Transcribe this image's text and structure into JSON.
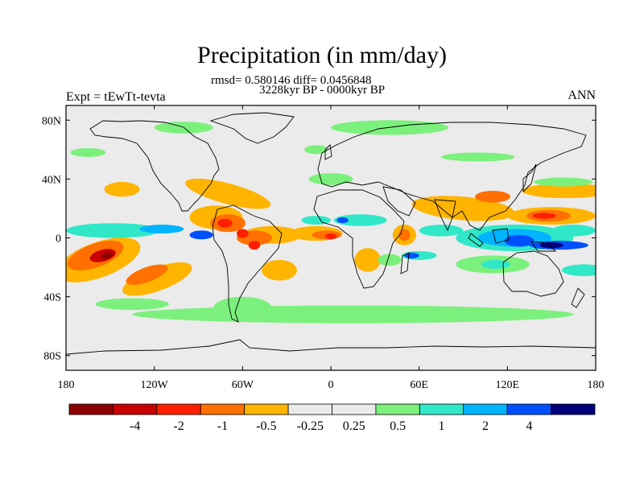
{
  "title": "Precipitation (in mm/day)",
  "stats_line": "rmsd= 0.580146 diff= 0.0456848",
  "period_line": "3228kyr BP - 0000kyr BP",
  "experiment_label": "Expt = tEwTt-tevta",
  "season_label": "ANN",
  "map": {
    "projection": "cylindrical-equidistant",
    "lon_range": [
      -180,
      180
    ],
    "lat_range": [
      -90,
      90
    ],
    "x_ticks": [
      {
        "lon": -180,
        "label": "180"
      },
      {
        "lon": -120,
        "label": "120W"
      },
      {
        "lon": -60,
        "label": "60W"
      },
      {
        "lon": 0,
        "label": "0"
      },
      {
        "lon": 60,
        "label": "60E"
      },
      {
        "lon": 120,
        "label": "120E"
      },
      {
        "lon": 180,
        "label": "180"
      }
    ],
    "y_ticks": [
      {
        "lat": 80,
        "label": "80N"
      },
      {
        "lat": 40,
        "label": "40N"
      },
      {
        "lat": 0,
        "label": "0"
      },
      {
        "lat": -40,
        "label": "40S"
      },
      {
        "lat": -80,
        "label": "80S"
      }
    ]
  },
  "colorbar": {
    "colors": [
      "#8b0000",
      "#c80000",
      "#ff2000",
      "#ff7000",
      "#ffb400",
      "#ebebeb",
      "#ebebeb",
      "#7cf07c",
      "#30e8c8",
      "#00b4ff",
      "#0050ff",
      "#00007a"
    ],
    "labels": [
      "-4",
      "-2",
      "-1",
      "-0.5",
      "-0.25",
      "0.25",
      "0.5",
      "1",
      "2",
      "4"
    ]
  },
  "anomaly_regions": [
    {
      "color": "#ffb400",
      "lon": -158,
      "lat": -15,
      "rlon": 30,
      "rlat": 12,
      "rot": -20
    },
    {
      "color": "#ff7000",
      "lon": -160,
      "lat": -12,
      "rlon": 20,
      "rlat": 8,
      "rot": -20
    },
    {
      "color": "#c80000",
      "lon": -155,
      "lat": -12,
      "rlon": 9,
      "rlat": 4,
      "rot": -15
    },
    {
      "color": "#8b0000",
      "lon": -152,
      "lat": -12,
      "rlon": 4,
      "rlat": 2,
      "rot": -15
    },
    {
      "color": "#ffb400",
      "lon": -118,
      "lat": -28,
      "rlon": 25,
      "rlat": 8,
      "rot": -20
    },
    {
      "color": "#ff7000",
      "lon": -125,
      "lat": -25,
      "rlon": 15,
      "rlat": 5,
      "rot": -20
    },
    {
      "color": "#30e8c8",
      "lon": -148,
      "lat": 5,
      "rlon": 32,
      "rlat": 5,
      "rot": 0
    },
    {
      "color": "#00b4ff",
      "lon": -115,
      "lat": 6,
      "rlon": 15,
      "rlat": 3,
      "rot": 0
    },
    {
      "color": "#0050ff",
      "lon": -88,
      "lat": 2,
      "rlon": 8,
      "rlat": 3,
      "rot": 0
    },
    {
      "color": "#ffb400",
      "lon": -70,
      "lat": 30,
      "rlon": 30,
      "rlat": 7,
      "rot": 15
    },
    {
      "color": "#ffb400",
      "lon": -142,
      "lat": 33,
      "rlon": 12,
      "rlat": 5,
      "rot": 0
    },
    {
      "color": "#ffb400",
      "lon": -78,
      "lat": 14,
      "rlon": 18,
      "rlat": 8,
      "rot": 0
    },
    {
      "color": "#ff7000",
      "lon": -70,
      "lat": 10,
      "rlon": 12,
      "rlat": 6,
      "rot": 0
    },
    {
      "color": "#ff2000",
      "lon": -72,
      "lat": 10,
      "rlon": 5,
      "rlat": 3,
      "rot": 0
    },
    {
      "color": "#ffb400",
      "lon": -40,
      "lat": 2,
      "rlon": 20,
      "rlat": 6,
      "rot": 0
    },
    {
      "color": "#ff7000",
      "lon": -52,
      "lat": 0,
      "rlon": 12,
      "rlat": 5,
      "rot": 0
    },
    {
      "color": "#ff2000",
      "lon": -60,
      "lat": 3,
      "rlon": 4,
      "rlat": 3,
      "rot": 0
    },
    {
      "color": "#ff2000",
      "lon": -52,
      "lat": -5,
      "rlon": 4,
      "rlat": 3,
      "rot": 0
    },
    {
      "color": "#ffb400",
      "lon": -35,
      "lat": -22,
      "rlon": 12,
      "rlat": 7,
      "rot": 0
    },
    {
      "color": "#ffb400",
      "lon": -10,
      "lat": 3,
      "rlon": 18,
      "rlat": 5,
      "rot": 0
    },
    {
      "color": "#ff7000",
      "lon": -3,
      "lat": 2,
      "rlon": 10,
      "rlat": 3,
      "rot": 0
    },
    {
      "color": "#ff2000",
      "lon": 0,
      "lat": 1,
      "rlon": 4,
      "rlat": 2,
      "rot": 0
    },
    {
      "color": "#30e8c8",
      "lon": -10,
      "lat": 12,
      "rlon": 10,
      "rlat": 3,
      "rot": 0
    },
    {
      "color": "#30e8c8",
      "lon": 20,
      "lat": 12,
      "rlon": 18,
      "rlat": 4,
      "rot": 0
    },
    {
      "color": "#0050ff",
      "lon": 8,
      "lat": 12,
      "rlon": 4,
      "rlat": 2,
      "rot": 0
    },
    {
      "color": "#ffb400",
      "lon": 25,
      "lat": -15,
      "rlon": 9,
      "rlat": 8,
      "rot": 0
    },
    {
      "color": "#ffb400",
      "lon": 50,
      "lat": 2,
      "rlon": 8,
      "rlat": 7,
      "rot": 0
    },
    {
      "color": "#ff7000",
      "lon": 50,
      "lat": 2,
      "rlon": 4,
      "rlat": 4,
      "rot": 0
    },
    {
      "color": "#30e8c8",
      "lon": 60,
      "lat": -12,
      "rlon": 12,
      "rlat": 3,
      "rot": 0
    },
    {
      "color": "#0050ff",
      "lon": 55,
      "lat": -12,
      "rlon": 5,
      "rlat": 2,
      "rot": 0
    },
    {
      "color": "#7cf07c",
      "lon": 40,
      "lat": -15,
      "rlon": 8,
      "rlat": 4,
      "rot": 0
    },
    {
      "color": "#ffb400",
      "lon": 90,
      "lat": 20,
      "rlon": 35,
      "rlat": 8,
      "rot": 5
    },
    {
      "color": "#ff7000",
      "lon": 110,
      "lat": 28,
      "rlon": 12,
      "rlat": 4,
      "rot": 0
    },
    {
      "color": "#30e8c8",
      "lon": 75,
      "lat": 5,
      "rlon": 15,
      "rlat": 4,
      "rot": 0
    },
    {
      "color": "#30e8c8",
      "lon": 125,
      "lat": 0,
      "rlon": 40,
      "rlat": 9,
      "rot": 0
    },
    {
      "color": "#00b4ff",
      "lon": 125,
      "lat": 0,
      "rlon": 25,
      "rlat": 6,
      "rot": 0
    },
    {
      "color": "#0050ff",
      "lon": 128,
      "lat": -2,
      "rlon": 10,
      "rlat": 4,
      "rot": 0
    },
    {
      "color": "#0050ff",
      "lon": 155,
      "lat": -5,
      "rlon": 20,
      "rlat": 3,
      "rot": 0
    },
    {
      "color": "#00007a",
      "lon": 150,
      "lat": -5,
      "rlon": 8,
      "rlat": 2,
      "rot": 0
    },
    {
      "color": "#30e8c8",
      "lon": 165,
      "lat": 5,
      "rlon": 15,
      "rlat": 4,
      "rot": 0
    },
    {
      "color": "#ffb400",
      "lon": 150,
      "lat": 15,
      "rlon": 30,
      "rlat": 6,
      "rot": 0
    },
    {
      "color": "#ff7000",
      "lon": 148,
      "lat": 15,
      "rlon": 15,
      "rlat": 4,
      "rot": 0
    },
    {
      "color": "#ff2000",
      "lon": 145,
      "lat": 15,
      "rlon": 8,
      "rlat": 2,
      "rot": 0
    },
    {
      "color": "#ffb400",
      "lon": 160,
      "lat": 32,
      "rlon": 30,
      "rlat": 5,
      "rot": 0
    },
    {
      "color": "#7cf07c",
      "lon": 158,
      "lat": 38,
      "rlon": 20,
      "rlat": 3,
      "rot": 0
    },
    {
      "color": "#7cf07c",
      "lon": 110,
      "lat": -18,
      "rlon": 25,
      "rlat": 6,
      "rot": 0
    },
    {
      "color": "#30e8c8",
      "lon": 112,
      "lat": -18,
      "rlon": 10,
      "rlat": 3,
      "rot": 0
    },
    {
      "color": "#30e8c8",
      "lon": 172,
      "lat": -22,
      "rlon": 15,
      "rlat": 4,
      "rot": 0
    },
    {
      "color": "#7cf07c",
      "lon": 15,
      "lat": -52,
      "rlon": 150,
      "rlat": 6,
      "rot": 0
    },
    {
      "color": "#7cf07c",
      "lon": -60,
      "lat": -48,
      "rlon": 20,
      "rlat": 8,
      "rot": 0
    },
    {
      "color": "#7cf07c",
      "lon": -135,
      "lat": -45,
      "rlon": 25,
      "rlat": 4,
      "rot": 0
    },
    {
      "color": "#7cf07c",
      "lon": 0,
      "lat": 40,
      "rlon": 15,
      "rlat": 4,
      "rot": 0
    },
    {
      "color": "#7cf07c",
      "lon": -10,
      "lat": 60,
      "rlon": 8,
      "rlat": 3,
      "rot": 0
    },
    {
      "color": "#7cf07c",
      "lon": 40,
      "lat": 75,
      "rlon": 40,
      "rlat": 5,
      "rot": 0
    },
    {
      "color": "#7cf07c",
      "lon": -165,
      "lat": 58,
      "rlon": 12,
      "rlat": 3,
      "rot": 0
    },
    {
      "color": "#7cf07c",
      "lon": -100,
      "lat": 75,
      "rlon": 20,
      "rlat": 4,
      "rot": 0
    },
    {
      "color": "#7cf07c",
      "lon": 100,
      "lat": 55,
      "rlon": 25,
      "rlat": 3,
      "rot": 0
    }
  ]
}
